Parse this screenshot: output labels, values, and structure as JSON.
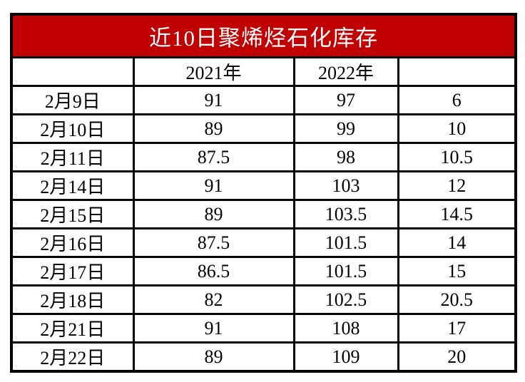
{
  "colors": {
    "title_background": "#c00000",
    "title_text": "#ffffff",
    "border": "#000000",
    "cell_text": "#000000",
    "cell_background": "#ffffff"
  },
  "chart_data": {
    "type": "table",
    "title": "近10日聚烯烃石化库存",
    "columns": [
      "",
      "2021年",
      "2022年",
      ""
    ],
    "categories": [
      "2月9日",
      "2月10日",
      "2月11日",
      "2月14日",
      "2月15日",
      "2月16日",
      "2月17日",
      "2月18日",
      "2月21日",
      "2月22日"
    ],
    "series": [
      {
        "name": "2021年",
        "values": [
          91,
          89,
          87.5,
          91,
          89,
          87.5,
          86.5,
          82,
          91,
          89
        ]
      },
      {
        "name": "2022年",
        "values": [
          97,
          99,
          98,
          103,
          103.5,
          101.5,
          101.5,
          102.5,
          108,
          109
        ]
      },
      {
        "name": "",
        "values": [
          6,
          10,
          10.5,
          12,
          14.5,
          14,
          15,
          20.5,
          17,
          20
        ]
      }
    ],
    "layout_hints": {
      "grid": "on",
      "header_style": "red banner with white bold text",
      "legend_position": "none"
    }
  }
}
